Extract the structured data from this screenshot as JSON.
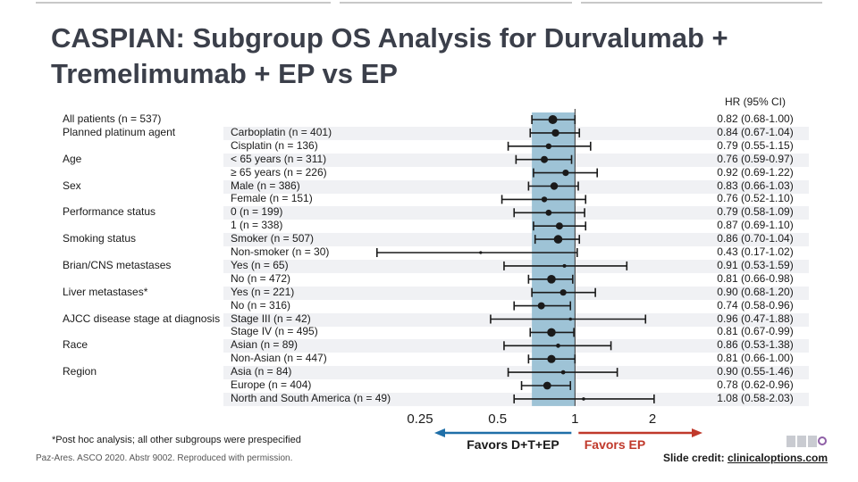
{
  "title": {
    "line1": "CASPIAN: Subgroup OS Analysis for Durvalumab +",
    "line2": "Tremelimumab + EP vs EP"
  },
  "chart_data": {
    "type": "forest",
    "x_scale": "log",
    "xlim": [
      0.25,
      2
    ],
    "x_ticks": [
      "0.25",
      "0.5",
      "1",
      "2"
    ],
    "reference_line": 1,
    "hr_header": "HR (95% CI)",
    "favors_left": "Favors D+T+EP",
    "favors_right": "Favors EP",
    "colors": {
      "shade": "#9ec3d6",
      "left_arrow": "#1f6fa8",
      "right_arrow": "#c0392b",
      "favors_right_text": "#c0392b",
      "marker": "#1a1a1a"
    },
    "groups": [
      {
        "label": "All patients (n = 537)",
        "row": 0
      },
      {
        "label": "Planned platinum agent",
        "row": 1
      },
      {
        "label": "Age",
        "row": 3
      },
      {
        "label": "Sex",
        "row": 5
      },
      {
        "label": "Performance status",
        "row": 7
      },
      {
        "label": "Smoking status",
        "row": 9
      },
      {
        "label": "Brian/CNS metastases",
        "row": 11
      },
      {
        "label": "Liver metastases*",
        "row": 13
      },
      {
        "label": "AJCC disease stage at diagnosis",
        "row": 15
      },
      {
        "label": "Race",
        "row": 17
      },
      {
        "label": "Region",
        "row": 19
      }
    ],
    "rows": [
      {
        "label": "",
        "hr": 0.82,
        "lo": 0.68,
        "hi": 1.0,
        "ci": "0.82 (0.68-1.00)",
        "size": 5
      },
      {
        "label": "Carboplatin (n = 401)",
        "hr": 0.84,
        "lo": 0.67,
        "hi": 1.04,
        "ci": "0.84 (0.67-1.04)",
        "size": 4.2
      },
      {
        "label": "Cisplatin (n = 136)",
        "hr": 0.79,
        "lo": 0.55,
        "hi": 1.15,
        "ci": "0.79 (0.55-1.15)",
        "size": 3.2
      },
      {
        "label": "< 65 years (n = 311)",
        "hr": 0.76,
        "lo": 0.59,
        "hi": 0.97,
        "ci": "0.76 (0.59-0.97)",
        "size": 4
      },
      {
        "label": "≥ 65 years (n = 226)",
        "hr": 0.92,
        "lo": 0.69,
        "hi": 1.22,
        "ci": "0.92 (0.69-1.22)",
        "size": 3.6
      },
      {
        "label": "Male (n = 386)",
        "hr": 0.83,
        "lo": 0.66,
        "hi": 1.03,
        "ci": "0.83 (0.66-1.03)",
        "size": 4.2
      },
      {
        "label": "Female (n = 151)",
        "hr": 0.76,
        "lo": 0.52,
        "hi": 1.1,
        "ci": "0.76 (0.52-1.10)",
        "size": 3.2
      },
      {
        "label": "0 (n = 199)",
        "hr": 0.79,
        "lo": 0.58,
        "hi": 1.09,
        "ci": "0.79 (0.58-1.09)",
        "size": 3.4
      },
      {
        "label": "1 (n = 338)",
        "hr": 0.87,
        "lo": 0.69,
        "hi": 1.1,
        "ci": "0.87 (0.69-1.10)",
        "size": 4
      },
      {
        "label": "Smoker (n = 507)",
        "hr": 0.86,
        "lo": 0.7,
        "hi": 1.04,
        "ci": "0.86 (0.70-1.04)",
        "size": 4.8
      },
      {
        "label": "Non-smoker (n = 30)",
        "hr": 0.43,
        "lo": 0.17,
        "hi": 1.02,
        "ci": "0.43 (0.17-1.02)",
        "size": 1.6
      },
      {
        "label": "Yes (n = 65)",
        "hr": 0.91,
        "lo": 0.53,
        "hi": 1.59,
        "ci": "0.91 (0.53-1.59)",
        "size": 2
      },
      {
        "label": "No (n = 472)",
        "hr": 0.81,
        "lo": 0.66,
        "hi": 0.98,
        "ci": "0.81 (0.66-0.98)",
        "size": 4.8
      },
      {
        "label": "Yes (n = 221)",
        "hr": 0.9,
        "lo": 0.68,
        "hi": 1.2,
        "ci": "0.90 (0.68-1.20)",
        "size": 3.6
      },
      {
        "label": "No (n = 316)",
        "hr": 0.74,
        "lo": 0.58,
        "hi": 0.96,
        "ci": "0.74 (0.58-0.96)",
        "size": 4
      },
      {
        "label": "Stage III (n = 42)",
        "hr": 0.96,
        "lo": 0.47,
        "hi": 1.88,
        "ci": "0.96 (0.47-1.88)",
        "size": 1.8
      },
      {
        "label": "Stage IV (n = 495)",
        "hr": 0.81,
        "lo": 0.67,
        "hi": 0.99,
        "ci": "0.81 (0.67-0.99)",
        "size": 4.8
      },
      {
        "label": "Asian (n = 89)",
        "hr": 0.86,
        "lo": 0.53,
        "hi": 1.38,
        "ci": "0.86 (0.53-1.38)",
        "size": 2.4
      },
      {
        "label": "Non-Asian (n = 447)",
        "hr": 0.81,
        "lo": 0.66,
        "hi": 1.0,
        "ci": "0.81 (0.66-1.00)",
        "size": 4.6
      },
      {
        "label": "Asia (n = 84)",
        "hr": 0.9,
        "lo": 0.55,
        "hi": 1.46,
        "ci": "0.90 (0.55-1.46)",
        "size": 2.4
      },
      {
        "label": "Europe (n = 404)",
        "hr": 0.78,
        "lo": 0.62,
        "hi": 0.96,
        "ci": "0.78 (0.62-0.96)",
        "size": 4.4
      },
      {
        "label": "North and South America (n = 49)",
        "hr": 1.08,
        "lo": 0.58,
        "hi": 2.03,
        "ci": "1.08 (0.58-2.03)",
        "size": 1.8
      }
    ]
  },
  "footnote": "*Post hoc analysis; all other subgroups were prespecified",
  "citation": "Paz-Ares. ASCO 2020. Abstr 9002. Reproduced with permission.",
  "credit": {
    "label": "Slide credit:",
    "link": "clinicaloptions.com"
  }
}
